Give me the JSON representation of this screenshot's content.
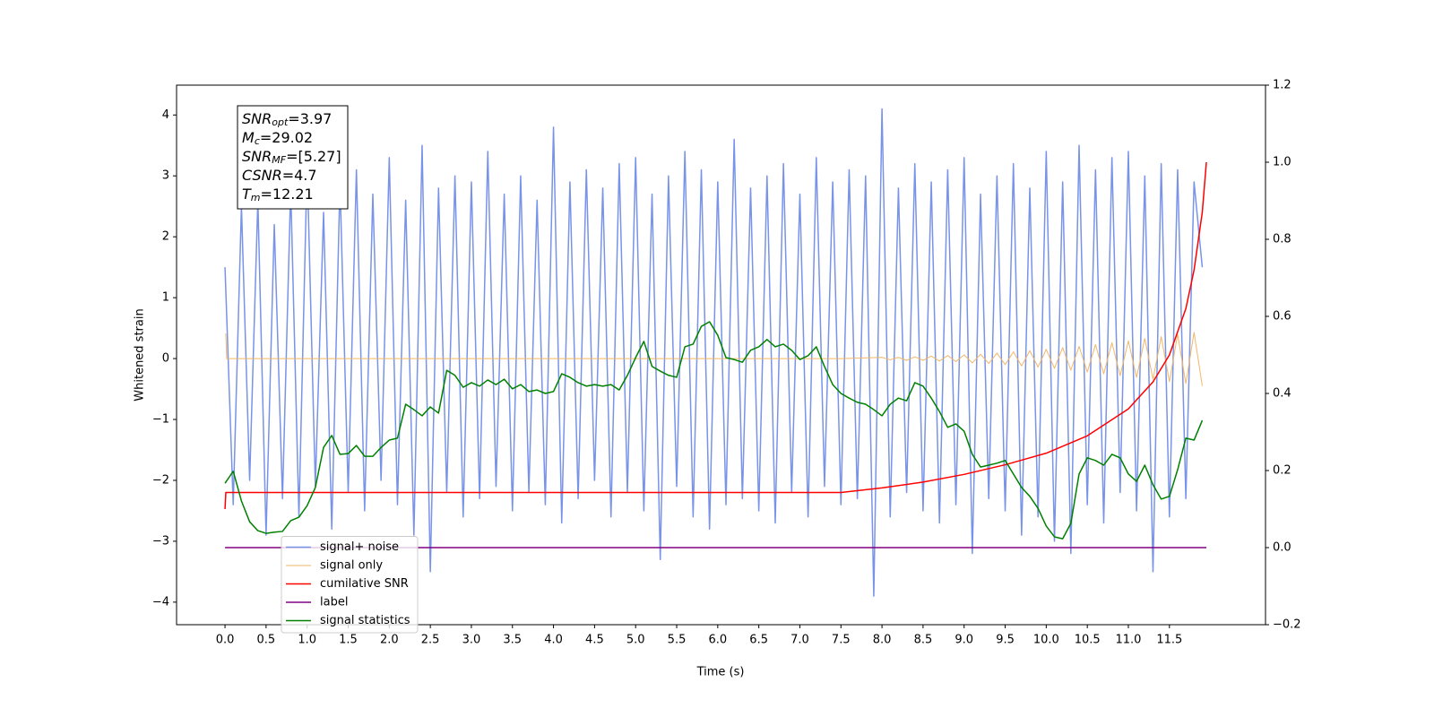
{
  "chart_data": {
    "type": "line",
    "xlabel": "Time (s)",
    "ylabel": "Whitened strain",
    "xlim": [
      -0.59,
      12.67
    ],
    "ylim": [
      -4.37,
      4.49
    ],
    "y2lim": [
      -0.2,
      1.2
    ],
    "xticks": [
      {
        "value": 0,
        "label": "0.0"
      },
      0.5,
      {
        "value": 1,
        "label": "1.0"
      },
      1.5,
      {
        "value": 2,
        "label": "2.0"
      },
      2.5,
      {
        "value": 3,
        "label": "3.0"
      },
      3.5,
      {
        "value": 4,
        "label": "4.0"
      },
      4.5,
      {
        "value": 5,
        "label": "5.0"
      },
      5.5,
      {
        "value": 6,
        "label": "6.0"
      },
      6.5,
      {
        "value": 7,
        "label": "7.0"
      },
      7.5,
      {
        "value": 8,
        "label": "8.0"
      },
      8.5,
      {
        "value": 9,
        "label": "9.0"
      },
      9.5,
      {
        "value": 10,
        "label": "10.0"
      },
      10.5,
      {
        "value": 11,
        "label": "11.0"
      },
      11.5
    ],
    "yticks": [
      {
        "value": -4,
        "label": "−4"
      },
      {
        "value": -3,
        "label": "−3"
      },
      {
        "value": -2,
        "label": "−2"
      },
      {
        "value": -1,
        "label": "−1"
      },
      0,
      1,
      2,
      3,
      4
    ],
    "y2ticks": [
      {
        "value": -0.2,
        "label": "−0.2"
      },
      {
        "value": 0,
        "label": "0.0"
      },
      {
        "value": 0.2,
        "label": "0.2"
      },
      {
        "value": 0.4,
        "label": "0.4"
      },
      {
        "value": 0.6,
        "label": "0.6"
      },
      {
        "value": 0.8,
        "label": "0.8"
      },
      {
        "value": 1,
        "label": "1.0"
      },
      {
        "value": 1.2,
        "label": "1.2"
      }
    ],
    "legend": "lower left",
    "annotations": [
      {
        "base": "SNR",
        "sub": "opt",
        "text": "=3.97"
      },
      {
        "base": "M",
        "sub": "c",
        "text": "=29.02"
      },
      {
        "base": "SNR",
        "sub": "MF",
        "text": "=[5.27]"
      },
      {
        "base": "CSNR",
        "text": "=4.7"
      },
      {
        "base": "T",
        "sub": "m",
        "text": "=12.21"
      }
    ],
    "series": [
      {
        "name": "signal+ noise",
        "color": "#7893e8",
        "width": 1.5,
        "x": [
          0,
          0.1,
          0.2,
          0.3,
          0.4,
          0.5,
          0.6,
          0.7,
          0.8,
          0.9,
          1,
          1.1,
          1.2,
          1.3,
          1.4,
          1.5,
          1.6,
          1.7,
          1.8,
          1.9,
          2,
          2.1,
          2.2,
          2.3,
          2.4,
          2.5,
          2.6,
          2.7,
          2.8,
          2.9,
          3,
          3.1,
          3.2,
          3.3,
          3.4,
          3.5,
          3.6,
          3.7,
          3.8,
          3.9,
          4,
          4.1,
          4.2,
          4.3,
          4.4,
          4.5,
          4.6,
          4.7,
          4.8,
          4.9,
          5,
          5.1,
          5.2,
          5.3,
          5.4,
          5.5,
          5.6,
          5.7,
          5.8,
          5.9,
          6,
          6.1,
          6.2,
          6.3,
          6.4,
          6.5,
          6.6,
          6.7,
          6.8,
          6.9,
          7,
          7.1,
          7.2,
          7.3,
          7.4,
          7.5,
          7.6,
          7.7,
          7.8,
          7.9,
          8,
          8.1,
          8.2,
          8.3,
          8.4,
          8.5,
          8.6,
          8.7,
          8.8,
          8.9,
          9,
          9.1,
          9.2,
          9.3,
          9.4,
          9.5,
          9.6,
          9.7,
          9.8,
          9.9,
          10,
          10.1,
          10.2,
          10.3,
          10.4,
          10.5,
          10.6,
          10.7,
          10.8,
          10.9,
          11,
          11.1,
          11.2,
          11.3,
          11.4,
          11.5,
          11.6,
          11.7,
          11.8,
          11.9
        ],
        "values": [
          1.5,
          -2.4,
          2.5,
          -2.0,
          2.6,
          -2.9,
          2.2,
          -2.3,
          2.8,
          -2.6,
          3.2,
          -2.1,
          2.4,
          -2.8,
          2.9,
          -2.2,
          3.1,
          -2.5,
          2.7,
          -2.0,
          3.3,
          -2.4,
          2.6,
          -2.9,
          3.5,
          -3.5,
          2.8,
          -2.2,
          3.0,
          -2.6,
          2.9,
          -2.3,
          3.4,
          -2.1,
          2.7,
          -2.5,
          3.0,
          -2.2,
          2.6,
          -2.4,
          3.8,
          -2.7,
          2.9,
          -2.3,
          3.1,
          -2.0,
          2.8,
          -2.6,
          3.2,
          -2.2,
          3.3,
          -2.5,
          2.7,
          -3.3,
          3.0,
          -2.1,
          3.4,
          -2.6,
          3.1,
          -2.8,
          2.9,
          -2.4,
          3.6,
          -2.3,
          2.8,
          -2.5,
          3.0,
          -2.7,
          3.2,
          -2.2,
          2.7,
          -2.6,
          3.3,
          -2.1,
          2.9,
          -2.4,
          3.1,
          -2.3,
          3.0,
          -3.9,
          4.1,
          -2.6,
          2.8,
          -2.2,
          3.2,
          -2.5,
          2.9,
          -2.7,
          3.1,
          -2.4,
          3.3,
          -3.2,
          2.7,
          -2.3,
          3.0,
          -2.5,
          3.2,
          -2.9,
          2.8,
          -2.6,
          3.4,
          -3.0,
          2.9,
          -3.2,
          3.5,
          -2.4,
          3.1,
          -2.7,
          3.3,
          -2.2,
          3.4,
          -2.5,
          3.0,
          -3.5,
          3.2,
          -2.6,
          3.1,
          -2.3,
          2.9,
          1.5
        ]
      },
      {
        "name": "signal only",
        "color": "#f2b766",
        "width": 1,
        "x": [
          0,
          0.01,
          0.02,
          7.5,
          8,
          8.1,
          8.2,
          8.3,
          8.4,
          8.5,
          8.6,
          8.7,
          8.8,
          8.9,
          9,
          9.1,
          9.2,
          9.3,
          9.4,
          9.5,
          9.6,
          9.7,
          9.8,
          9.9,
          10,
          10.1,
          10.2,
          10.3,
          10.4,
          10.5,
          10.6,
          10.7,
          10.8,
          10.9,
          11,
          11.1,
          11.2,
          11.3,
          11.4,
          11.5,
          11.6,
          11.7,
          11.8,
          11.9
        ],
        "values": [
          0.4,
          0.4,
          0,
          0,
          0.02,
          -0.02,
          0.02,
          -0.03,
          0.03,
          -0.03,
          0.04,
          -0.04,
          0.05,
          -0.05,
          0.06,
          -0.07,
          0.07,
          -0.08,
          0.09,
          -0.1,
          0.11,
          -0.12,
          0.13,
          -0.14,
          0.15,
          -0.16,
          0.18,
          -0.19,
          0.2,
          -0.22,
          0.23,
          -0.25,
          0.26,
          -0.28,
          0.29,
          -0.31,
          0.33,
          -0.34,
          0.36,
          -0.38,
          0.4,
          -0.41,
          0.43,
          -0.45
        ]
      },
      {
        "name": "cumilative SNR",
        "color": "#ff0000",
        "width": 1.5,
        "axis": "y2",
        "x": [
          0,
          0.01,
          7.5,
          8,
          8.5,
          9,
          9.5,
          10,
          10.5,
          11,
          11.3,
          11.5,
          11.7,
          11.8,
          11.9,
          11.95
        ],
        "values": [
          0.1,
          0.143,
          0.143,
          0.155,
          0.17,
          0.19,
          0.215,
          0.245,
          0.29,
          0.36,
          0.43,
          0.5,
          0.62,
          0.72,
          0.87,
          1.0
        ]
      },
      {
        "name": "label",
        "color": "#800080",
        "width": 1.5,
        "axis": "y2",
        "x": [
          0,
          11.95
        ],
        "values": [
          0,
          0
        ]
      },
      {
        "name": "signal statistics",
        "color": "#008000",
        "width": 1.5,
        "axis": "y2",
        "x": [
          0,
          0.1,
          0.2,
          0.3,
          0.4,
          0.5,
          0.6,
          0.7,
          0.8,
          0.9,
          1,
          1.1,
          1.2,
          1.3,
          1.4,
          1.5,
          1.6,
          1.7,
          1.8,
          1.9,
          2,
          2.1,
          2.2,
          2.3,
          2.4,
          2.5,
          2.6,
          2.7,
          2.8,
          2.9,
          3,
          3.1,
          3.2,
          3.3,
          3.4,
          3.5,
          3.6,
          3.7,
          3.8,
          3.9,
          4,
          4.1,
          4.2,
          4.3,
          4.4,
          4.5,
          4.6,
          4.7,
          4.8,
          4.9,
          5,
          5.1,
          5.2,
          5.3,
          5.4,
          5.5,
          5.6,
          5.7,
          5.8,
          5.9,
          6,
          6.1,
          6.2,
          6.3,
          6.4,
          6.5,
          6.6,
          6.7,
          6.8,
          6.9,
          7,
          7.1,
          7.2,
          7.3,
          7.4,
          7.5,
          7.6,
          7.7,
          7.8,
          7.9,
          8,
          8.1,
          8.2,
          8.3,
          8.4,
          8.5,
          8.6,
          8.7,
          8.8,
          8.9,
          9,
          9.1,
          9.2,
          9.3,
          9.4,
          9.5,
          9.6,
          9.7,
          9.8,
          9.9,
          10,
          10.1,
          10.2,
          10.3,
          10.4,
          10.5,
          10.6,
          10.7,
          10.8,
          10.9,
          11,
          11.1,
          11.2,
          11.3,
          11.4,
          11.5,
          11.6,
          11.7,
          11.8,
          11.9
        ],
        "values": [
          0.167,
          0.198,
          0.121,
          0.067,
          0.044,
          0.037,
          0.04,
          0.042,
          0.07,
          0.079,
          0.109,
          0.156,
          0.26,
          0.291,
          0.242,
          0.244,
          0.265,
          0.237,
          0.237,
          0.26,
          0.279,
          0.284,
          0.372,
          0.358,
          0.342,
          0.365,
          0.349,
          0.46,
          0.447,
          0.416,
          0.428,
          0.419,
          0.435,
          0.423,
          0.437,
          0.412,
          0.423,
          0.405,
          0.409,
          0.4,
          0.405,
          0.451,
          0.442,
          0.428,
          0.419,
          0.423,
          0.419,
          0.423,
          0.409,
          0.447,
          0.493,
          0.535,
          0.47,
          0.458,
          0.447,
          0.442,
          0.521,
          0.528,
          0.574,
          0.586,
          0.551,
          0.493,
          0.488,
          0.481,
          0.512,
          0.521,
          0.54,
          0.521,
          0.528,
          0.512,
          0.488,
          0.498,
          0.521,
          0.47,
          0.423,
          0.4,
          0.388,
          0.377,
          0.372,
          0.358,
          0.342,
          0.372,
          0.388,
          0.381,
          0.428,
          0.419,
          0.388,
          0.353,
          0.312,
          0.321,
          0.302,
          0.242,
          0.209,
          0.214,
          0.219,
          0.226,
          0.191,
          0.156,
          0.133,
          0.102,
          0.056,
          0.028,
          0.023,
          0.063,
          0.191,
          0.233,
          0.226,
          0.214,
          0.242,
          0.233,
          0.191,
          0.172,
          0.214,
          0.163,
          0.126,
          0.133,
          0.202,
          0.284,
          0.279,
          0.33
        ]
      }
    ]
  }
}
